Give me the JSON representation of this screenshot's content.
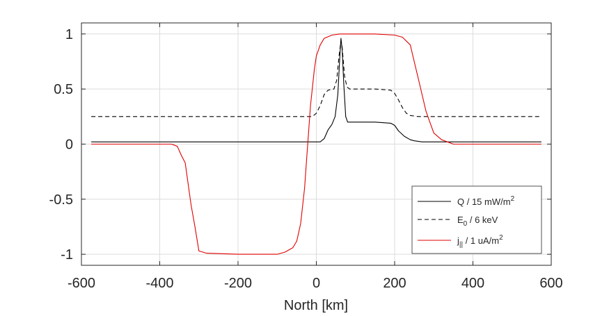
{
  "chart_data": {
    "type": "line",
    "xlabel": "North [km]",
    "ylabel": "",
    "title": "",
    "xlim": [
      -600,
      600
    ],
    "ylim": [
      -1.1,
      1.1
    ],
    "xticks": [
      "-600",
      "-400",
      "-200",
      "0",
      "200",
      "400",
      "600"
    ],
    "xtick_values": [
      -600,
      -400,
      -200,
      0,
      200,
      400,
      600
    ],
    "yticks": [
      "-1",
      "-0.5",
      "0",
      "0.5",
      "1"
    ],
    "ytick_values": [
      -1,
      -0.5,
      0,
      0.5,
      1
    ],
    "grid": true,
    "legend_position": "lower-right",
    "series": [
      {
        "name": "Q / 15 mW/m²",
        "legend": {
          "base": "Q / 15 mW/m",
          "sup": "2",
          "sub": "",
          "rest": ""
        },
        "color": "#000000",
        "dash": "solid",
        "x": [
          -575,
          10,
          20,
          30,
          40,
          48,
          55,
          60,
          63,
          66,
          70,
          75,
          80,
          100,
          150,
          190,
          200,
          210,
          225,
          240,
          250,
          270,
          300,
          575
        ],
        "y": [
          0.02,
          0.02,
          0.05,
          0.13,
          0.18,
          0.25,
          0.45,
          0.8,
          0.96,
          0.86,
          0.55,
          0.25,
          0.2,
          0.2,
          0.2,
          0.19,
          0.17,
          0.12,
          0.07,
          0.04,
          0.03,
          0.02,
          0.02,
          0.02
        ]
      },
      {
        "name": "E₀ / 6 keV",
        "legend": {
          "base": "E",
          "sup": "",
          "sub": "0",
          "rest": " / 6 keV"
        },
        "color": "#000000",
        "dash": "dashed",
        "x": [
          -575,
          -10,
          0,
          10,
          20,
          30,
          45,
          52,
          58,
          63,
          66,
          72,
          78,
          85,
          100,
          150,
          190,
          200,
          210,
          220,
          230,
          240,
          260,
          575
        ],
        "y": [
          0.25,
          0.25,
          0.28,
          0.35,
          0.45,
          0.49,
          0.5,
          0.58,
          0.8,
          0.94,
          0.88,
          0.62,
          0.52,
          0.5,
          0.5,
          0.5,
          0.49,
          0.46,
          0.4,
          0.33,
          0.28,
          0.26,
          0.25,
          0.25
        ]
      },
      {
        "name": "j|| / 1 uA/m²",
        "legend": {
          "base": "j",
          "sup": "",
          "sub": "||",
          "rest": " / 1 uA/m",
          "rest_sup": "2"
        },
        "color": "#e00000",
        "dash": "solid",
        "x": [
          -575,
          -370,
          -355,
          -345,
          -335,
          -320,
          -310,
          -300,
          -280,
          -200,
          -100,
          -80,
          -60,
          -50,
          -40,
          -30,
          -25,
          -20,
          -15,
          -5,
          0,
          10,
          20,
          40,
          60,
          100,
          150,
          200,
          220,
          240,
          250,
          260,
          270,
          280,
          290,
          300,
          320,
          350,
          575
        ],
        "y": [
          0.0,
          0.0,
          -0.02,
          -0.1,
          -0.17,
          -0.55,
          -0.75,
          -0.97,
          -0.99,
          -1.0,
          -1.0,
          -0.98,
          -0.94,
          -0.88,
          -0.72,
          -0.4,
          -0.15,
          0.1,
          0.35,
          0.68,
          0.8,
          0.9,
          0.96,
          0.99,
          1.0,
          1.0,
          1.0,
          0.99,
          0.97,
          0.9,
          0.75,
          0.6,
          0.45,
          0.3,
          0.2,
          0.1,
          0.04,
          0.0,
          0.0
        ]
      }
    ]
  }
}
